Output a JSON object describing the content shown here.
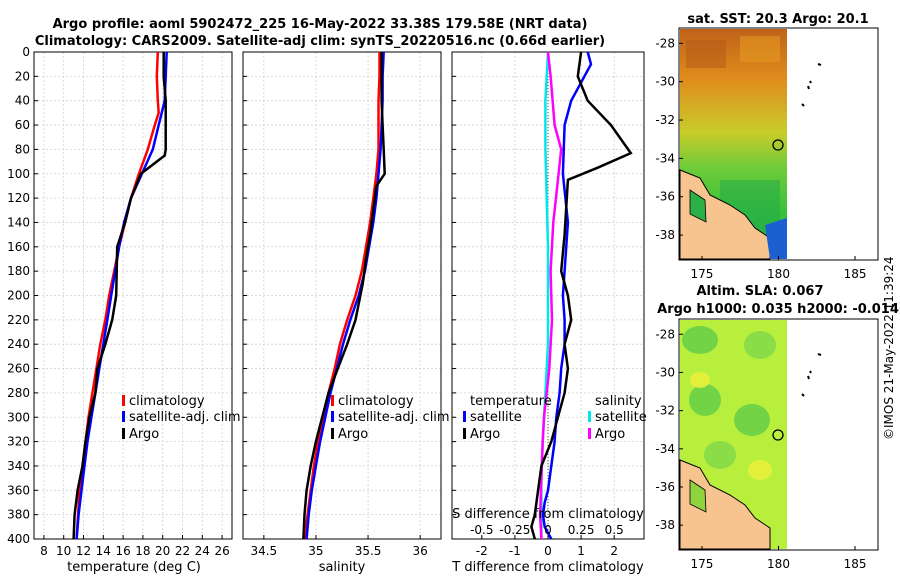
{
  "title": {
    "line1": "Argo profile: aoml 5902472_225 16-May-2022 33.38S 179.58E (NRT data)",
    "line2": "Climatology: CARS2009. Satellite-adj clim: synTS_20220516.nc (0.66d earlier)"
  },
  "credit": "©IMOS 21-May-2022 11:39:24",
  "colors": {
    "climatology": "#ff0000",
    "satellite": "#0000ff",
    "argo": "#000000",
    "sal_satellite": "#00e5ee",
    "sal_argo": "#ff00ff"
  },
  "chart_data": [
    {
      "name": "temperature-profile",
      "type": "line",
      "xlabel": "temperature (deg C)",
      "ylabel": "",
      "xlim": [
        7,
        27
      ],
      "ylim": [
        0,
        400
      ],
      "xticks": [
        8,
        10,
        12,
        14,
        16,
        18,
        20,
        22,
        24,
        26
      ],
      "yticks": [
        0,
        20,
        40,
        60,
        80,
        100,
        120,
        140,
        160,
        180,
        200,
        220,
        240,
        260,
        280,
        300,
        320,
        340,
        360,
        380,
        400
      ],
      "legend": [
        "climatology",
        "satellite-adj. clim",
        "Argo"
      ],
      "series": [
        {
          "name": "climatology",
          "x": [
            19.5,
            19.4,
            19.5,
            19.6,
            19.2,
            18.5,
            17.6,
            16.8,
            16.2,
            15.6,
            15.1,
            14.6,
            14.2,
            13.7,
            13.3,
            12.9,
            12.5,
            12.2,
            11.9,
            11.6,
            11.3
          ],
          "y": [
            0,
            20,
            40,
            50,
            60,
            80,
            100,
            120,
            140,
            160,
            180,
            200,
            220,
            240,
            260,
            280,
            300,
            320,
            340,
            360,
            400
          ]
        },
        {
          "name": "satellite-adj. clim",
          "x": [
            20.4,
            20.3,
            20.2,
            19.6,
            19.0,
            17.9,
            16.8,
            16.1,
            15.6,
            15.2,
            14.8,
            14.4,
            14.0,
            13.6,
            13.2,
            12.8,
            12.4,
            12.1,
            11.8,
            11.5,
            11.3
          ],
          "y": [
            0,
            20,
            40,
            60,
            80,
            100,
            120,
            140,
            160,
            180,
            200,
            220,
            240,
            260,
            280,
            300,
            320,
            340,
            360,
            380,
            400
          ]
        },
        {
          "name": "Argo",
          "x": [
            20.1,
            20.1,
            20.3,
            20.3,
            20.3,
            20.2,
            17.8,
            16.8,
            16.2,
            15.4,
            15.3,
            14.9,
            14.2,
            13.4,
            13.2,
            12.6,
            12.2,
            11.9,
            11.4,
            11.1,
            11.0
          ],
          "y": [
            0,
            20,
            40,
            60,
            80,
            85,
            100,
            120,
            140,
            160,
            200,
            220,
            240,
            260,
            280,
            300,
            320,
            340,
            360,
            380,
            400
          ]
        }
      ]
    },
    {
      "name": "salinity-profile",
      "type": "line",
      "xlabel": "salinity",
      "xlim": [
        34.3,
        36.2
      ],
      "ylim": [
        0,
        400
      ],
      "xticks": [
        34.5,
        35,
        35.5,
        36
      ],
      "legend": [
        "climatology",
        "satellite-adj. clim",
        "Argo"
      ],
      "series": [
        {
          "name": "climatology",
          "x": [
            35.61,
            35.61,
            35.6,
            35.6,
            35.6,
            35.58,
            35.55,
            35.52,
            35.48,
            35.44,
            35.38,
            35.3,
            35.23,
            35.18,
            35.12,
            35.07,
            35.02,
            34.98,
            34.95,
            34.92,
            34.89
          ],
          "y": [
            0,
            20,
            40,
            60,
            80,
            100,
            120,
            140,
            160,
            180,
            200,
            220,
            240,
            260,
            280,
            300,
            320,
            340,
            360,
            380,
            400
          ]
        },
        {
          "name": "satellite-adj. clim",
          "x": [
            35.65,
            35.64,
            35.64,
            35.63,
            35.62,
            35.6,
            35.58,
            35.55,
            35.51,
            35.47,
            35.41,
            35.33,
            35.26,
            35.2,
            35.14,
            35.09,
            35.04,
            35.0,
            34.96,
            34.93,
            34.91
          ],
          "y": [
            0,
            20,
            40,
            60,
            80,
            100,
            120,
            140,
            160,
            180,
            200,
            220,
            240,
            260,
            280,
            300,
            320,
            340,
            360,
            380,
            400
          ]
        },
        {
          "name": "Argo",
          "x": [
            35.63,
            35.63,
            35.63,
            35.64,
            35.65,
            35.66,
            35.58,
            35.55,
            35.52,
            35.48,
            35.45,
            35.38,
            35.3,
            35.21,
            35.12,
            35.06,
            35.0,
            34.95,
            34.91,
            34.89,
            34.88
          ],
          "y": [
            0,
            20,
            40,
            60,
            80,
            100,
            110,
            130,
            150,
            170,
            190,
            220,
            240,
            260,
            280,
            300,
            320,
            340,
            360,
            380,
            400
          ]
        }
      ]
    },
    {
      "name": "difference-profile",
      "type": "line",
      "xlabel": "T difference from climatology",
      "x2label": "S difference from climatology",
      "xlim": [
        -2.9,
        2.9
      ],
      "ylim": [
        0,
        400
      ],
      "xticks": [
        -2,
        -1,
        0,
        1,
        2
      ],
      "x2ticks": [
        "-0.5",
        "-0.25",
        "0",
        "0.25",
        "0.5"
      ],
      "legend_temperature": {
        "title": "temperature",
        "items": [
          "satellite",
          "Argo"
        ]
      },
      "legend_salinity": {
        "title": "salinity",
        "items": [
          "satellite",
          "Argo"
        ]
      },
      "series": [
        {
          "name": "T satellite",
          "x": [
            1.2,
            1.3,
            0.7,
            0.5,
            0.45,
            0.6,
            0.5,
            0.45,
            0.5,
            0.5,
            0.4,
            0.35,
            0.25,
            0.2,
            0.1,
            0.0,
            -0.1,
            -0.15,
            -0.1,
            0.0,
            0.1
          ],
          "y": [
            0,
            10,
            40,
            60,
            100,
            140,
            180,
            200,
            220,
            240,
            260,
            280,
            300,
            320,
            340,
            360,
            370,
            380,
            390,
            395,
            400
          ]
        },
        {
          "name": "T Argo",
          "x": [
            1.0,
            0.9,
            1.2,
            1.9,
            2.5,
            1.5,
            0.6,
            0.5,
            0.4,
            0.6,
            0.7,
            0.5,
            0.6,
            0.5,
            0.3,
            0.1,
            -0.2,
            -0.3,
            -0.4,
            -0.5,
            -0.4
          ],
          "y": [
            0,
            20,
            40,
            60,
            83,
            95,
            105,
            150,
            180,
            200,
            220,
            240,
            260,
            280,
            300,
            320,
            340,
            360,
            380,
            390,
            400
          ]
        },
        {
          "name": "S satellite",
          "x": [
            0.0,
            -0.01,
            -0.02,
            -0.02,
            -0.01,
            0.0,
            0.0,
            0.0,
            -0.01,
            -0.02,
            -0.03,
            -0.04,
            -0.05,
            -0.05,
            -0.05
          ],
          "y": [
            0,
            20,
            40,
            80,
            120,
            160,
            200,
            240,
            260,
            280,
            300,
            320,
            350,
            380,
            400
          ]
        },
        {
          "name": "S Argo",
          "x": [
            0.0,
            0.02,
            0.05,
            0.1,
            0.08,
            0.04,
            0.02,
            0.03,
            0.01,
            -0.01,
            -0.03,
            -0.04,
            -0.05,
            -0.06,
            -0.05
          ],
          "y": [
            0,
            20,
            60,
            80,
            100,
            140,
            180,
            220,
            260,
            280,
            300,
            320,
            350,
            380,
            400
          ]
        }
      ]
    },
    {
      "name": "sst-map",
      "type": "heatmap",
      "title": "sat. SST: 20.3 Argo: 20.1",
      "xticks": [
        175,
        180,
        185
      ],
      "yticks": [
        -28,
        -30,
        -32,
        -34,
        -36,
        -38
      ]
    },
    {
      "name": "sla-map",
      "type": "heatmap",
      "title": "Altim. SLA: 0.067",
      "subtitle": "Argo h1000: 0.035 h2000: -0.014",
      "xticks": [
        175,
        180,
        185
      ],
      "yticks": [
        -28,
        -30,
        -32,
        -34,
        -36,
        -38
      ]
    }
  ]
}
